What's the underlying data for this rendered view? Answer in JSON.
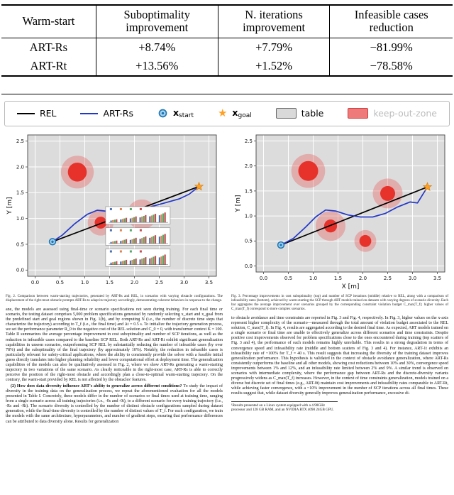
{
  "table": {
    "headers": [
      "Warm-start",
      "Suboptimality improvement",
      "N. iterations improvement",
      "Infeasible cases reduction"
    ],
    "rows": [
      {
        "name": "ART-Rs",
        "values": [
          "+8.74%",
          "+7.79%",
          "−81.99%"
        ]
      },
      {
        "name": "ART-Rt",
        "values": [
          "+13.56%",
          "+1.52%",
          "−78.58%"
        ]
      }
    ]
  },
  "legend": {
    "star_glyph": "★",
    "items": [
      {
        "label": "REL"
      },
      {
        "label": "ART-Rs"
      },
      {
        "main": "x",
        "sub": "start"
      },
      {
        "main": "x",
        "sub": "goal"
      },
      {
        "label": "table"
      },
      {
        "label": "keep-out-zone"
      }
    ]
  },
  "chart_data": [
    {
      "type": "line",
      "name": "fig2-left-trajectory-plot",
      "title": "",
      "xlabel": "",
      "ylabel": "Y [m]",
      "x_range": [
        -0.15,
        3.65
      ],
      "y_range": [
        -0.12,
        2.62
      ],
      "x_ticks": [
        0,
        0.5,
        1,
        1.5,
        2,
        2.5,
        3,
        3.5
      ],
      "y_ticks": [
        0,
        0.5,
        1,
        1.5,
        2,
        2.5
      ],
      "background": "#dcdcdc",
      "grid": true,
      "legend_position": "figure-top",
      "obstacles": [
        {
          "x": 0.85,
          "y": 1.9,
          "r": 0.19,
          "halo_r": 0.33
        },
        {
          "x": 1.32,
          "y": 0.92,
          "r": 0.12,
          "halo_r": 0.26
        },
        {
          "x": 2.15,
          "y": 1.08,
          "r": 0.15,
          "halo_r": 0.3
        }
      ],
      "start": [
        0.35,
        0.55
      ],
      "goal": [
        3.3,
        1.62
      ],
      "series": [
        {
          "name": "REL",
          "color": "#000000",
          "points": [
            [
              0.35,
              0.55
            ],
            [
              3.3,
              1.62
            ]
          ]
        },
        {
          "name": "ART-Rs",
          "color": "#2238c8",
          "points": [
            [
              0.35,
              0.55
            ],
            [
              0.55,
              0.68
            ],
            [
              0.8,
              0.9
            ],
            [
              1.05,
              1.08
            ],
            [
              1.25,
              1.16
            ],
            [
              1.45,
              1.14
            ],
            [
              1.7,
              1.1
            ],
            [
              2.0,
              1.12
            ],
            [
              2.3,
              1.22
            ],
            [
              2.6,
              1.3
            ],
            [
              2.9,
              1.38
            ],
            [
              3.1,
              1.47
            ],
            [
              3.3,
              1.62
            ]
          ]
        }
      ],
      "inset_colors": [
        "#4c72b0",
        "#dd8452",
        "#55a868",
        "#c44e52"
      ],
      "insets": [
        {
          "rect": [
            1.42,
            0.89,
            1.3,
            0.34
          ],
          "values": [
            [
              0.18,
              0.22,
              0.26,
              0.3
            ],
            [
              0.28,
              0.33,
              0.38,
              0.44
            ],
            [
              0.38,
              0.44,
              0.5,
              0.57
            ],
            [
              0.48,
              0.55,
              0.62,
              0.7
            ],
            [
              0.58,
              0.66,
              0.74,
              0.82
            ],
            [
              0.68,
              0.77,
              0.86,
              0.95
            ]
          ]
        },
        {
          "rect": [
            1.42,
            0.48,
            1.3,
            0.34
          ],
          "values": [
            [
              0.15,
              0.2,
              0.24,
              0.28
            ],
            [
              0.25,
              0.3,
              0.36,
              0.42
            ],
            [
              0.35,
              0.41,
              0.48,
              0.55
            ],
            [
              0.45,
              0.52,
              0.6,
              0.68
            ],
            [
              0.55,
              0.63,
              0.72,
              0.8
            ],
            [
              0.66,
              0.75,
              0.84,
              0.92
            ]
          ]
        },
        {
          "rect": [
            1.42,
            0.07,
            1.3,
            0.34
          ],
          "values": [
            [
              0.2,
              0.24,
              0.28,
              0.33
            ],
            [
              0.3,
              0.35,
              0.4,
              0.46
            ],
            [
              0.4,
              0.46,
              0.52,
              0.59
            ],
            [
              0.5,
              0.57,
              0.64,
              0.72
            ],
            [
              0.6,
              0.68,
              0.76,
              0.84
            ],
            [
              0.7,
              0.79,
              0.88,
              0.97
            ]
          ]
        }
      ]
    },
    {
      "type": "line",
      "name": "fig2-right-trajectory-plot",
      "title": "",
      "xlabel": "X [m]",
      "ylabel": "Y [m]",
      "x_range": [
        -0.15,
        3.65
      ],
      "y_range": [
        -0.12,
        2.62
      ],
      "x_ticks": [
        0,
        0.5,
        1,
        1.5,
        2,
        2.5,
        3,
        3.5
      ],
      "y_ticks": [
        0,
        0.5,
        1,
        1.5,
        2,
        2.5
      ],
      "background": "#dcdcdc",
      "grid": true,
      "obstacles": [
        {
          "x": 0.9,
          "y": 1.9,
          "r": 0.2,
          "halo_r": 0.34
        },
        {
          "x": 1.35,
          "y": 0.8,
          "r": 0.13,
          "halo_r": 0.3
        },
        {
          "x": 2.5,
          "y": 1.45,
          "r": 0.15,
          "halo_r": 0.3
        },
        {
          "x": 2.05,
          "y": 0.5,
          "r": 0.12,
          "halo_r": 0.22
        }
      ],
      "start": [
        0.35,
        0.42
      ],
      "goal": [
        3.3,
        1.58
      ],
      "series": [
        {
          "name": "REL",
          "color": "#000000",
          "points": [
            [
              0.35,
              0.42
            ],
            [
              3.3,
              1.58
            ]
          ]
        },
        {
          "name": "ART-Rs",
          "color": "#2238c8",
          "points": [
            [
              0.35,
              0.42
            ],
            [
              0.6,
              0.55
            ],
            [
              0.85,
              0.78
            ],
            [
              1.05,
              0.98
            ],
            [
              1.25,
              1.12
            ],
            [
              1.45,
              1.1
            ],
            [
              1.7,
              1.02
            ],
            [
              1.95,
              0.98
            ],
            [
              2.2,
              0.98
            ],
            [
              2.45,
              1.05
            ],
            [
              2.7,
              1.18
            ],
            [
              2.95,
              1.28
            ],
            [
              3.1,
              1.26
            ],
            [
              3.3,
              1.58
            ]
          ]
        }
      ]
    }
  ],
  "captions": {
    "fig2": "Fig. 2.  Comparison between warm-starting trajectories, generated by ART-Rs and REL, in scenarios with varying obstacle configurations. The displacement of the right-most obstacle prompts ART-Rs to adapt its trajectory accordingly, demonstrating coherent behaviors in response to the change.",
    "fig3": "Fig. 3.  Percentage improvements in cost suboptimality (top) and number of SCP iterations (middle) relative to REL, along with a comparison of infeasibility rates (bottom), achieved by warm-starting the SCP through ART models trained on datasets with varying degrees of scenario diversity. Each bar aggregates the average improvement over scenarios grouped by the corresponding constraint violation budget C_max(T_f); higher values of C_max(T_f) correspond to more complex scenarios."
  },
  "body": {
    "left": {
      "para1": "ane, the models are assessed using final-time or scenario specifications not seen during training. For each final time or scenario, the testing dataset comprises 5,000 problem specifications generated by randomly selecting x_start and x_goal from the predefined start and goal regions shown in Fig. 1(b), and by computing N (i.e., the number of discrete time steps that characterize the trajectory) according to T_f (i.e., the final time) and Δt = 0.5 s. To initialize the trajectory generation process, we set the performance parameter R_0 to the negative cost of the REL solution and C_0 = 0, with transformer context K = 100. Table II summarizes the average percentage improvement in cost suboptimality and number of SCP iterations, as well as the reduction in infeasible cases compared to the baseline SCP REL. Both ART-Rs and ART-Rt exhibit significant generalization capabilities in unseen scenarios, outperforming SCP REL by substantially reducing the number of infeasible cases (by over 78%) and the suboptimality of the final trajectory (by approximately 10%). Notably, the reduction in infeasible cases is particularly relevant for safety-critical applications, where the ability to consistently provide the solver with a feasible initial guess directly translates into higher planning reliability and lower computational effort at deployment time. The generalization capabilities of the models can also be qualitatively assessed in Fig. 2, where we show ART-Rs generating a warm-starting trajectory in two variations of the same scenario. As clearly noticeable in the right-most case, ART-Rs is able to correctly perceive the position of the right-most obstacle and accordingly plan a close-to-optimal warm-starting trajectory. On the contrary, the warm-start provided by REL is not affected by the obstacles' features.",
      "question": "(2) How does data diversity influence ART's ability to generalize across different conditions?",
      "para2": "To study the impact of diversity in the training data on the generalization process, we repeat the aforementioned evaluation for all the models presented in Table I. Concretely, these models differ in the number of scenarios or final times used at training time, ranging from a single scenario across all training trajectories (i.e., -0s and -0t), to a different scenario for every training trajectory (i.e., -Rs and -Rt). The scenario diversity is controlled by the number of distinct obstacle configurations sampled during dataset generation, while the final-time diversity is controlled by the number of distinct values of T_f. For each configuration, we train the models with the same architecture, hyperparameters, and number of gradient steps, ensuring that performance differences can be attributed to data diversity alone. Results for generalization"
    },
    "right": {
      "para3": "to obstacle avoidance and time constraints are reported in Fig. 3 and Fig. 4, respectively. In Fig. 3, higher values on the x-axis represent higher complexity of the scenario—measured through the total amount of violation budget associated to the REL solution, C_max(T_f). In Fig. 4, results are aggregated according to the desired final time. As expected, ART models trained on a single scenario or final time are unable to effectively generalize across different scenarios and time constraints. Despite positive cost improvements observed for problem specifications close to the ones encountered during training (top scatters of Fig. 3 and 4), the performance of such models remains highly unreliable. This results in a strong degradation in terms of convergence speed and infeasibility rate (middle and bottom scatters of Fig. 3 and 4). For instance, ART-1t exhibits an infeasibility rate of ~100% for T_f = 40 s. This result suggests that increasing the diversity of the training dataset improves generalization performance. This hypothesis is validated in the context of obstacle avoidance generalization, where ART-Rs consistently outperforms the baseline and all other models, showing cost reductions between 10% and 30%, convergence speed improvements between 1% and 12%, and an infeasibility rate limited between 2% and 9%. A similar trend is observed on scenarios with intermediate complexity, where the performance gap between ART-Rs and the discrete-diversity variants progressively widens as C_max(T_f) increases. However, in the context of time constraints generalization, models trained on a diverse but discrete set of final times (e.g., ART-0t) maintain cost improvements and infeasibility rates comparable to ART-Rt, while achieving faster convergence, with a ~10% improvement in the number of SCP iterations across all final times. These results suggest that, while dataset diversity generally improves generalization performance, excessive di-",
      "footnote": "¹Results presented on a Linux system equipped with a 4.90GHz processor and 128 GB RAM, and an NVIDIA RTX 4090 24GB GPU."
    }
  },
  "colors": {
    "rel_line": "#000000",
    "art_rs_line": "#2238c8",
    "table_fill": "#dcdcdc",
    "keep_out_zone": "#e6322a",
    "goal_star": "#ffa022",
    "start_marker": "#1f77b4"
  }
}
